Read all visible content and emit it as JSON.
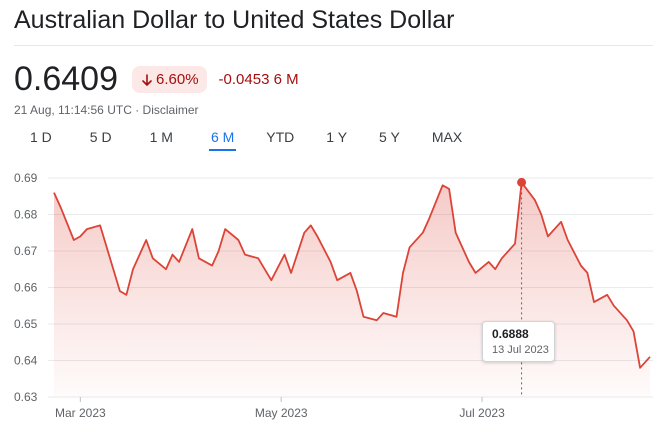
{
  "header": {
    "title": "Australian Dollar to United States Dollar",
    "price": "0.6409",
    "change_pct": "6.60%",
    "change_abs": "-0.0453 6 M",
    "timestamp": "21 Aug, 11:14:56 UTC",
    "separator": "·",
    "disclaimer": "Disclaimer"
  },
  "tabs": [
    {
      "label": "1 D"
    },
    {
      "label": "5 D"
    },
    {
      "label": "1 M"
    },
    {
      "label": "6 M",
      "active": true
    },
    {
      "label": "YTD"
    },
    {
      "label": "1 Y"
    },
    {
      "label": "5 Y"
    },
    {
      "label": "MAX"
    }
  ],
  "colors": {
    "line": "#db4437",
    "negative": "#a50e0e",
    "active_tab": "#1a73e8"
  },
  "tooltip": {
    "value": "0.6888",
    "date": "13 Jul 2023"
  },
  "chart_data": {
    "type": "area",
    "x": [
      "2023-02-21",
      "2023-02-23",
      "2023-02-27",
      "2023-03-01",
      "2023-03-03",
      "2023-03-07",
      "2023-03-09",
      "2023-03-13",
      "2023-03-15",
      "2023-03-17",
      "2023-03-21",
      "2023-03-23",
      "2023-03-27",
      "2023-03-29",
      "2023-03-31",
      "2023-04-04",
      "2023-04-06",
      "2023-04-10",
      "2023-04-12",
      "2023-04-14",
      "2023-04-18",
      "2023-04-20",
      "2023-04-24",
      "2023-04-26",
      "2023-04-28",
      "2023-05-02",
      "2023-05-04",
      "2023-05-08",
      "2023-05-10",
      "2023-05-12",
      "2023-05-16",
      "2023-05-18",
      "2023-05-22",
      "2023-05-24",
      "2023-05-26",
      "2023-05-30",
      "2023-06-01",
      "2023-06-05",
      "2023-06-07",
      "2023-06-09",
      "2023-06-13",
      "2023-06-15",
      "2023-06-19",
      "2023-06-21",
      "2023-06-23",
      "2023-06-27",
      "2023-06-29",
      "2023-07-03",
      "2023-07-05",
      "2023-07-07",
      "2023-07-11",
      "2023-07-13",
      "2023-07-17",
      "2023-07-19",
      "2023-07-21",
      "2023-07-25",
      "2023-07-27",
      "2023-07-31",
      "2023-08-02",
      "2023-08-04",
      "2023-08-08",
      "2023-08-10",
      "2023-08-14",
      "2023-08-16",
      "2023-08-18",
      "2023-08-21"
    ],
    "values": [
      0.686,
      0.682,
      0.673,
      0.674,
      0.676,
      0.677,
      0.671,
      0.659,
      0.658,
      0.665,
      0.673,
      0.668,
      0.665,
      0.669,
      0.667,
      0.676,
      0.668,
      0.666,
      0.67,
      0.676,
      0.673,
      0.669,
      0.668,
      0.665,
      0.662,
      0.669,
      0.664,
      0.675,
      0.677,
      0.674,
      0.667,
      0.662,
      0.664,
      0.659,
      0.652,
      0.651,
      0.653,
      0.652,
      0.664,
      0.671,
      0.675,
      0.679,
      0.688,
      0.687,
      0.675,
      0.667,
      0.664,
      0.667,
      0.665,
      0.668,
      0.672,
      0.6888,
      0.684,
      0.68,
      0.674,
      0.678,
      0.673,
      0.666,
      0.664,
      0.656,
      0.658,
      0.655,
      0.651,
      0.648,
      0.638,
      0.641
    ],
    "xlabels": [
      "Mar 2023",
      "May 2023",
      "Jul 2023"
    ],
    "xlabel_dates": [
      "2023-03-01",
      "2023-05-01",
      "2023-07-01"
    ],
    "yticks": [
      0.63,
      0.64,
      0.65,
      0.66,
      0.67,
      0.68,
      0.69
    ],
    "ylim": [
      0.63,
      0.69
    ],
    "highlight": {
      "date": "2023-07-13",
      "value": 0.6888
    },
    "grid": true
  }
}
